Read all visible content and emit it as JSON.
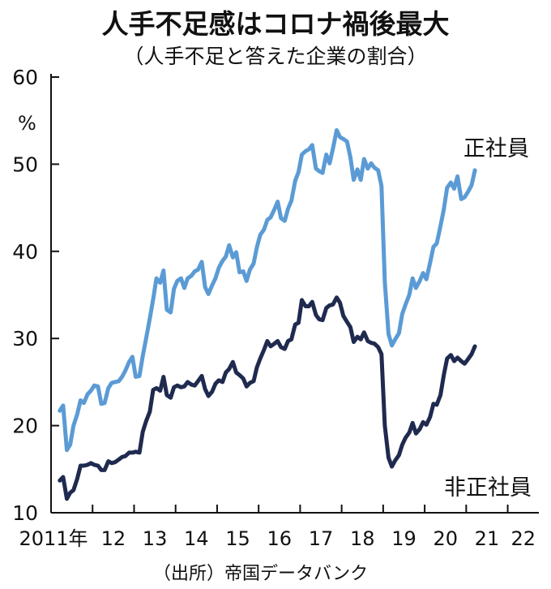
{
  "chart_data": {
    "type": "line",
    "title": "人手不足感はコロナ禍後最大",
    "subtitle": "（人手不足と答えた企業の割合）",
    "ylabel": "%",
    "ylim": [
      10,
      60
    ],
    "yticks": [
      10,
      20,
      30,
      40,
      50,
      60
    ],
    "xlim": [
      2011.0,
      2022.75
    ],
    "xticks": [
      {
        "x": 2011.0,
        "label": "2011年"
      },
      {
        "x": 2012.0,
        "label": "12"
      },
      {
        "x": 2013.0,
        "label": "13"
      },
      {
        "x": 2014.0,
        "label": "14"
      },
      {
        "x": 2015.0,
        "label": "15"
      },
      {
        "x": 2016.0,
        "label": "16"
      },
      {
        "x": 2017.0,
        "label": "17"
      },
      {
        "x": 2018.0,
        "label": "18"
      },
      {
        "x": 2019.0,
        "label": "19"
      },
      {
        "x": 2020.0,
        "label": "20"
      },
      {
        "x": 2021.0,
        "label": "21"
      },
      {
        "x": 2022.0,
        "label": "22"
      }
    ],
    "grid": false,
    "source": "（出所）帝国データバンク",
    "series": [
      {
        "name": "正社員",
        "color": "#5b9bd5",
        "points": [
          [
            2011.21,
            21.7
          ],
          [
            2011.29,
            22.3
          ],
          [
            2011.38,
            17.2
          ],
          [
            2011.46,
            17.8
          ],
          [
            2011.54,
            20.0
          ],
          [
            2011.63,
            21.3
          ],
          [
            2011.71,
            22.9
          ],
          [
            2011.79,
            22.6
          ],
          [
            2011.88,
            23.6
          ],
          [
            2011.96,
            24.0
          ],
          [
            2012.04,
            24.6
          ],
          [
            2012.13,
            24.5
          ],
          [
            2012.21,
            22.5
          ],
          [
            2012.29,
            22.6
          ],
          [
            2012.38,
            24.3
          ],
          [
            2012.46,
            24.9
          ],
          [
            2012.54,
            25.0
          ],
          [
            2012.63,
            25.1
          ],
          [
            2012.71,
            25.6
          ],
          [
            2012.79,
            26.3
          ],
          [
            2012.88,
            27.3
          ],
          [
            2012.96,
            27.9
          ],
          [
            2013.04,
            25.6
          ],
          [
            2013.13,
            25.7
          ],
          [
            2013.21,
            28.0
          ],
          [
            2013.29,
            30.0
          ],
          [
            2013.38,
            32.3
          ],
          [
            2013.46,
            34.5
          ],
          [
            2013.54,
            36.9
          ],
          [
            2013.63,
            36.4
          ],
          [
            2013.71,
            37.8
          ],
          [
            2013.79,
            33.3
          ],
          [
            2013.88,
            33.0
          ],
          [
            2013.96,
            35.7
          ],
          [
            2014.04,
            36.6
          ],
          [
            2014.13,
            36.9
          ],
          [
            2014.21,
            35.8
          ],
          [
            2014.29,
            36.9
          ],
          [
            2014.38,
            37.2
          ],
          [
            2014.46,
            37.7
          ],
          [
            2014.54,
            37.9
          ],
          [
            2014.63,
            38.8
          ],
          [
            2014.71,
            35.9
          ],
          [
            2014.79,
            35.1
          ],
          [
            2014.88,
            36.1
          ],
          [
            2014.96,
            36.9
          ],
          [
            2015.04,
            38.1
          ],
          [
            2015.13,
            38.9
          ],
          [
            2015.21,
            39.4
          ],
          [
            2015.29,
            40.7
          ],
          [
            2015.38,
            39.3
          ],
          [
            2015.46,
            39.9
          ],
          [
            2015.54,
            37.6
          ],
          [
            2015.63,
            37.7
          ],
          [
            2015.71,
            36.6
          ],
          [
            2015.79,
            37.9
          ],
          [
            2015.88,
            38.6
          ],
          [
            2015.96,
            40.5
          ],
          [
            2016.04,
            41.9
          ],
          [
            2016.13,
            42.5
          ],
          [
            2016.21,
            43.6
          ],
          [
            2016.29,
            43.9
          ],
          [
            2016.38,
            44.8
          ],
          [
            2016.46,
            45.7
          ],
          [
            2016.54,
            43.8
          ],
          [
            2016.63,
            43.5
          ],
          [
            2016.71,
            44.9
          ],
          [
            2016.79,
            45.8
          ],
          [
            2016.88,
            48.1
          ],
          [
            2016.96,
            49.1
          ],
          [
            2017.04,
            51.1
          ],
          [
            2017.13,
            51.5
          ],
          [
            2017.21,
            51.7
          ],
          [
            2017.29,
            52.2
          ],
          [
            2017.38,
            49.5
          ],
          [
            2017.46,
            49.2
          ],
          [
            2017.54,
            49.0
          ],
          [
            2017.63,
            51.1
          ],
          [
            2017.71,
            50.1
          ],
          [
            2017.79,
            51.8
          ],
          [
            2017.88,
            53.9
          ],
          [
            2017.96,
            53.1
          ],
          [
            2018.04,
            52.9
          ],
          [
            2018.13,
            52.6
          ],
          [
            2018.21,
            50.8
          ],
          [
            2018.29,
            48.2
          ],
          [
            2018.38,
            49.4
          ],
          [
            2018.46,
            48.2
          ],
          [
            2018.54,
            50.6
          ],
          [
            2018.63,
            49.5
          ],
          [
            2018.71,
            50.1
          ],
          [
            2018.79,
            49.6
          ],
          [
            2018.88,
            49.3
          ],
          [
            2018.96,
            47.5
          ],
          [
            2019.04,
            36.5
          ],
          [
            2019.13,
            30.5
          ],
          [
            2019.21,
            29.2
          ],
          [
            2019.29,
            29.9
          ],
          [
            2019.38,
            30.6
          ],
          [
            2019.46,
            32.8
          ],
          [
            2019.54,
            33.9
          ],
          [
            2019.63,
            35.0
          ],
          [
            2019.71,
            36.9
          ],
          [
            2019.79,
            35.8
          ],
          [
            2019.88,
            36.6
          ],
          [
            2019.96,
            37.5
          ],
          [
            2020.04,
            36.8
          ],
          [
            2020.13,
            38.7
          ],
          [
            2020.21,
            40.5
          ],
          [
            2020.29,
            40.9
          ],
          [
            2020.38,
            42.9
          ],
          [
            2020.46,
            44.8
          ],
          [
            2020.54,
            47.3
          ],
          [
            2020.63,
            47.9
          ],
          [
            2020.71,
            47.2
          ],
          [
            2020.79,
            48.6
          ],
          [
            2020.88,
            46.0
          ],
          [
            2020.96,
            46.2
          ],
          [
            2021.04,
            46.8
          ],
          [
            2021.13,
            47.6
          ],
          [
            2021.21,
            49.3
          ]
        ]
      },
      {
        "name": "非正社員",
        "color": "#1f2a4f",
        "points": [
          [
            2011.21,
            13.7
          ],
          [
            2011.29,
            14.1
          ],
          [
            2011.38,
            11.6
          ],
          [
            2011.46,
            12.3
          ],
          [
            2011.54,
            12.6
          ],
          [
            2011.63,
            13.9
          ],
          [
            2011.71,
            15.4
          ],
          [
            2011.79,
            15.4
          ],
          [
            2011.88,
            15.5
          ],
          [
            2011.96,
            15.7
          ],
          [
            2012.04,
            15.5
          ],
          [
            2012.13,
            15.4
          ],
          [
            2012.21,
            14.9
          ],
          [
            2012.29,
            14.9
          ],
          [
            2012.38,
            15.9
          ],
          [
            2012.46,
            15.7
          ],
          [
            2012.54,
            15.8
          ],
          [
            2012.63,
            16.1
          ],
          [
            2012.71,
            16.4
          ],
          [
            2012.79,
            16.5
          ],
          [
            2012.88,
            16.9
          ],
          [
            2012.96,
            16.9
          ],
          [
            2013.04,
            17.0
          ],
          [
            2013.13,
            16.9
          ],
          [
            2013.21,
            19.3
          ],
          [
            2013.29,
            20.5
          ],
          [
            2013.38,
            21.6
          ],
          [
            2013.46,
            24.1
          ],
          [
            2013.54,
            24.3
          ],
          [
            2013.63,
            24.0
          ],
          [
            2013.71,
            25.6
          ],
          [
            2013.79,
            23.5
          ],
          [
            2013.88,
            23.2
          ],
          [
            2013.96,
            24.4
          ],
          [
            2014.04,
            24.6
          ],
          [
            2014.13,
            24.4
          ],
          [
            2014.21,
            24.5
          ],
          [
            2014.29,
            25.0
          ],
          [
            2014.38,
            24.7
          ],
          [
            2014.46,
            24.6
          ],
          [
            2014.54,
            25.1
          ],
          [
            2014.63,
            25.7
          ],
          [
            2014.71,
            24.2
          ],
          [
            2014.79,
            23.4
          ],
          [
            2014.88,
            23.9
          ],
          [
            2014.96,
            24.8
          ],
          [
            2015.04,
            25.2
          ],
          [
            2015.13,
            25.0
          ],
          [
            2015.21,
            26.1
          ],
          [
            2015.29,
            26.5
          ],
          [
            2015.38,
            27.3
          ],
          [
            2015.46,
            26.1
          ],
          [
            2015.54,
            25.8
          ],
          [
            2015.63,
            25.4
          ],
          [
            2015.71,
            24.5
          ],
          [
            2015.79,
            24.9
          ],
          [
            2015.88,
            25.1
          ],
          [
            2015.96,
            26.7
          ],
          [
            2016.04,
            27.7
          ],
          [
            2016.13,
            28.7
          ],
          [
            2016.21,
            29.7
          ],
          [
            2016.29,
            29.1
          ],
          [
            2016.38,
            29.4
          ],
          [
            2016.46,
            29.7
          ],
          [
            2016.54,
            29.0
          ],
          [
            2016.63,
            28.8
          ],
          [
            2016.71,
            29.7
          ],
          [
            2016.79,
            29.9
          ],
          [
            2016.88,
            31.6
          ],
          [
            2016.96,
            31.8
          ],
          [
            2017.04,
            34.4
          ],
          [
            2017.13,
            33.7
          ],
          [
            2017.21,
            33.7
          ],
          [
            2017.29,
            34.2
          ],
          [
            2017.38,
            32.7
          ],
          [
            2017.46,
            32.2
          ],
          [
            2017.54,
            32.1
          ],
          [
            2017.63,
            33.5
          ],
          [
            2017.71,
            33.8
          ],
          [
            2017.79,
            33.9
          ],
          [
            2017.88,
            34.7
          ],
          [
            2017.96,
            34.1
          ],
          [
            2018.04,
            32.6
          ],
          [
            2018.13,
            31.9
          ],
          [
            2018.21,
            31.3
          ],
          [
            2018.29,
            29.6
          ],
          [
            2018.38,
            30.2
          ],
          [
            2018.46,
            29.9
          ],
          [
            2018.54,
            30.7
          ],
          [
            2018.63,
            29.7
          ],
          [
            2018.71,
            29.5
          ],
          [
            2018.79,
            29.4
          ],
          [
            2018.88,
            29.0
          ],
          [
            2018.96,
            28.2
          ],
          [
            2019.04,
            20.0
          ],
          [
            2019.13,
            16.3
          ],
          [
            2019.21,
            15.3
          ],
          [
            2019.29,
            16.0
          ],
          [
            2019.38,
            16.6
          ],
          [
            2019.46,
            17.8
          ],
          [
            2019.54,
            18.6
          ],
          [
            2019.63,
            19.2
          ],
          [
            2019.71,
            20.3
          ],
          [
            2019.79,
            19.1
          ],
          [
            2019.88,
            19.6
          ],
          [
            2019.96,
            20.4
          ],
          [
            2020.04,
            20.1
          ],
          [
            2020.13,
            21.0
          ],
          [
            2020.21,
            22.5
          ],
          [
            2020.29,
            22.4
          ],
          [
            2020.38,
            23.5
          ],
          [
            2020.46,
            25.8
          ],
          [
            2020.54,
            27.7
          ],
          [
            2020.63,
            28.1
          ],
          [
            2020.71,
            27.4
          ],
          [
            2020.79,
            27.8
          ],
          [
            2020.88,
            27.4
          ],
          [
            2020.96,
            27.1
          ],
          [
            2021.04,
            27.6
          ],
          [
            2021.13,
            28.2
          ],
          [
            2021.21,
            29.1
          ]
        ]
      }
    ]
  }
}
